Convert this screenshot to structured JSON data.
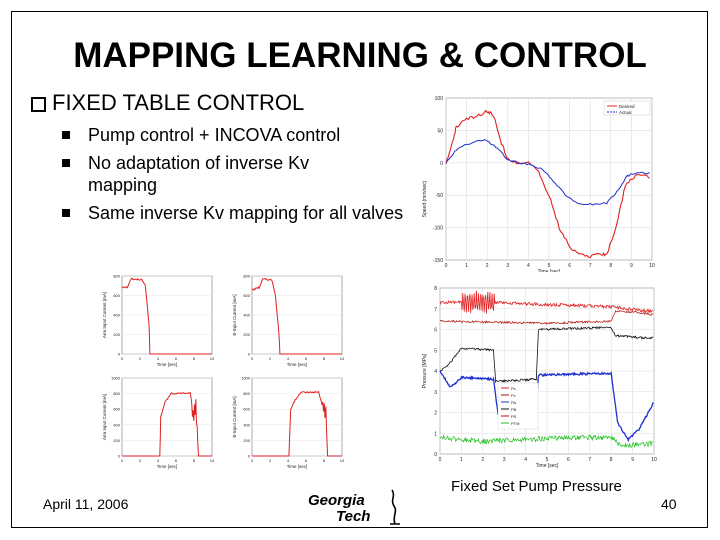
{
  "title": "MAPPING LEARNING & CONTROL",
  "main_bullet": "FIXED TABLE CONTROL",
  "sub_bullets": [
    "Pump control + INCOVA control",
    "No adaptation of inverse Kv mapping",
    "Same inverse Kv mapping for all valves"
  ],
  "caption": "Fixed Set Pump Pressure",
  "footer": {
    "date": "April 11, 2006",
    "page": "40"
  },
  "logo": {
    "line1": "Georgia",
    "line2": "Tech"
  },
  "charts": {
    "top_right": {
      "legend": [
        "Desired",
        "Actual"
      ],
      "ylabel": "Speed (mm/sec)",
      "xlabel": "Time [sec]",
      "yticks": [
        "100",
        "50",
        "0",
        "-50",
        "-100",
        "-150"
      ],
      "xticks": [
        "0",
        "1",
        "2",
        "3",
        "4",
        "5",
        "6",
        "7",
        "8",
        "9",
        "10"
      ]
    },
    "mid_right": {
      "ylabel": "Pressure [MPa]",
      "xlabel": "Time [sec]",
      "yticks": [
        "8",
        "7",
        "6",
        "5",
        "4",
        "3",
        "2",
        "1",
        "0"
      ],
      "xticks": [
        "0",
        "1",
        "2",
        "3",
        "4",
        "5",
        "6",
        "7",
        "8",
        "9",
        "10"
      ],
      "legend": [
        "Ps",
        "Pc",
        "PA",
        "PB",
        "PS",
        "PTM"
      ]
    },
    "small": [
      {
        "ylabel": "Arm Input Current [mA]",
        "xlabel": "Time [sec]",
        "yticks": [
          "800",
          "600",
          "400",
          "200",
          "0"
        ]
      },
      {
        "ylabel": "B-Input Current [mA]",
        "xlabel": "Time [sec]",
        "yticks": [
          "800",
          "600",
          "400",
          "200",
          "0"
        ]
      },
      {
        "ylabel": "Arm Input Current [mA]",
        "xlabel": "Time [sec]",
        "yticks": [
          "1000",
          "800",
          "600",
          "400",
          "200",
          "0"
        ]
      },
      {
        "ylabel": "B-Input Current [mA]",
        "xlabel": "Time [sec]",
        "yticks": [
          "1000",
          "800",
          "600",
          "400",
          "200",
          "0"
        ]
      }
    ],
    "small_xticks": [
      "0",
      "2",
      "4",
      "6",
      "8",
      "10"
    ],
    "colors": {
      "red": "#e02020",
      "blue": "#2030d0",
      "black": "#111111",
      "green": "#20c020",
      "darkred": "#b01010"
    }
  }
}
